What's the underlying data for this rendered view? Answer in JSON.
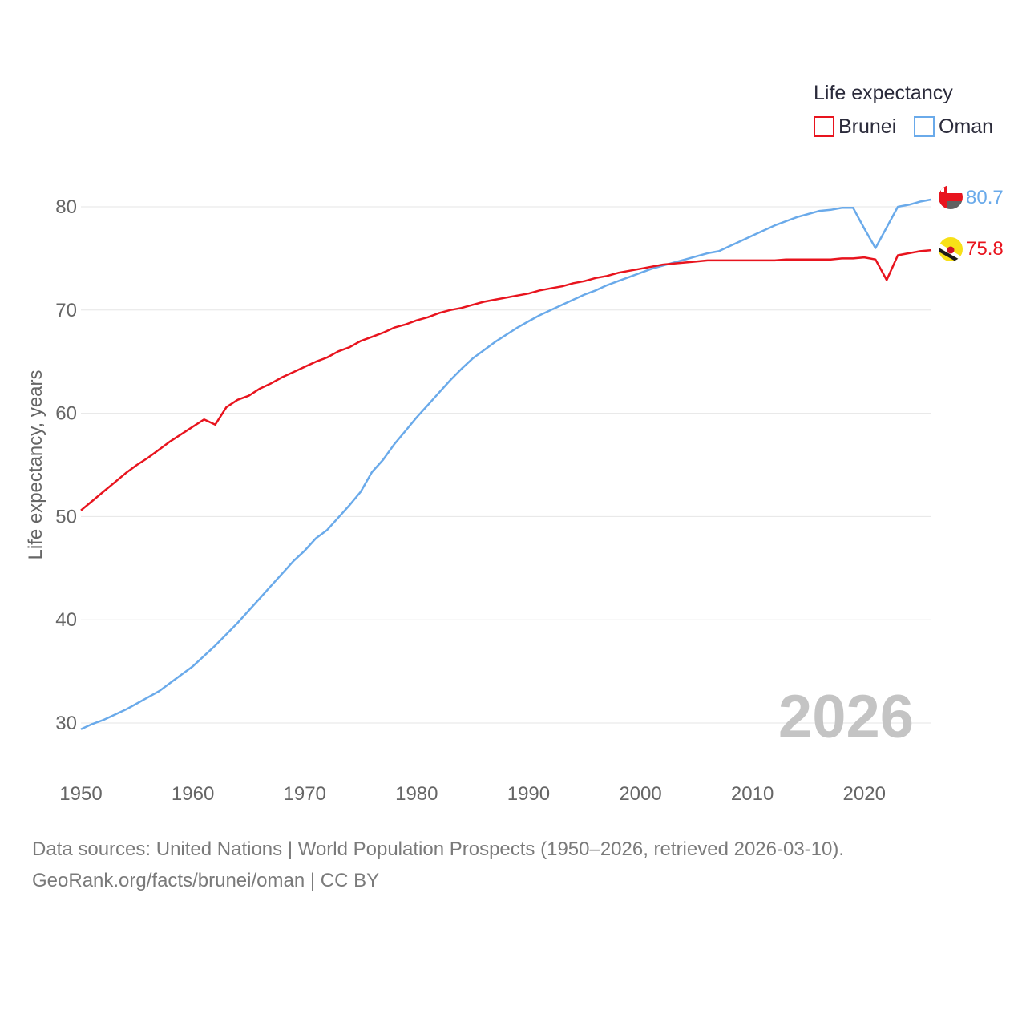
{
  "chart_data": {
    "type": "line",
    "title": "",
    "xlabel": "",
    "ylabel": "Life expectancy, years",
    "xlim": [
      1950,
      2026
    ],
    "ylim": [
      25.5,
      84.5
    ],
    "x_ticks": [
      1950,
      1960,
      1970,
      1980,
      1990,
      2000,
      2010,
      2020
    ],
    "y_ticks": [
      30,
      40,
      50,
      60,
      70,
      80
    ],
    "grid": true,
    "legend": {
      "title": "Life expectancy",
      "position": "top-right"
    },
    "current_year_label": "2026",
    "years": [
      1950,
      1951,
      1952,
      1953,
      1954,
      1955,
      1956,
      1957,
      1958,
      1959,
      1960,
      1961,
      1962,
      1963,
      1964,
      1965,
      1966,
      1967,
      1968,
      1969,
      1970,
      1971,
      1972,
      1973,
      1974,
      1975,
      1976,
      1977,
      1978,
      1979,
      1980,
      1981,
      1982,
      1983,
      1984,
      1985,
      1986,
      1987,
      1988,
      1989,
      1990,
      1991,
      1992,
      1993,
      1994,
      1995,
      1996,
      1997,
      1998,
      1999,
      2000,
      2001,
      2002,
      2003,
      2004,
      2005,
      2006,
      2007,
      2008,
      2009,
      2010,
      2011,
      2012,
      2013,
      2014,
      2015,
      2016,
      2017,
      2018,
      2019,
      2020,
      2021,
      2022,
      2023,
      2024,
      2025,
      2026
    ],
    "series": [
      {
        "name": "Brunei",
        "color": "#e8141e",
        "end_label": "75.8",
        "values": [
          50.6,
          51.5,
          52.4,
          53.3,
          54.2,
          55.0,
          55.7,
          56.5,
          57.3,
          58.0,
          58.7,
          59.4,
          58.9,
          60.6,
          61.3,
          61.7,
          62.4,
          62.9,
          63.5,
          64.0,
          64.5,
          65.0,
          65.4,
          66.0,
          66.4,
          67.0,
          67.4,
          67.8,
          68.3,
          68.6,
          69.0,
          69.3,
          69.7,
          70.0,
          70.2,
          70.5,
          70.8,
          71.0,
          71.2,
          71.4,
          71.6,
          71.9,
          72.1,
          72.3,
          72.6,
          72.8,
          73.1,
          73.3,
          73.6,
          73.8,
          74.0,
          74.2,
          74.4,
          74.5,
          74.6,
          74.7,
          74.8,
          74.8,
          74.8,
          74.8,
          74.8,
          74.8,
          74.8,
          74.9,
          74.9,
          74.9,
          74.9,
          74.9,
          75.0,
          75.0,
          75.1,
          74.9,
          72.9,
          75.3,
          75.5,
          75.7,
          75.8
        ]
      },
      {
        "name": "Oman",
        "color": "#6aaaea",
        "end_label": "80.7",
        "values": [
          29.4,
          29.9,
          30.3,
          30.8,
          31.3,
          31.9,
          32.5,
          33.1,
          33.9,
          34.7,
          35.5,
          36.5,
          37.5,
          38.6,
          39.7,
          40.9,
          42.1,
          43.3,
          44.5,
          45.7,
          46.7,
          47.9,
          48.7,
          49.9,
          51.1,
          52.4,
          54.3,
          55.5,
          57.0,
          58.3,
          59.6,
          60.8,
          62.0,
          63.2,
          64.3,
          65.3,
          66.1,
          66.9,
          67.6,
          68.3,
          68.9,
          69.5,
          70.0,
          70.5,
          71.0,
          71.5,
          71.9,
          72.4,
          72.8,
          73.2,
          73.6,
          74.0,
          74.3,
          74.6,
          74.9,
          75.2,
          75.5,
          75.7,
          76.2,
          76.7,
          77.2,
          77.7,
          78.2,
          78.6,
          79.0,
          79.3,
          79.6,
          79.7,
          79.9,
          79.9,
          77.9,
          76.0,
          78.0,
          80.0,
          80.2,
          80.5,
          80.7
        ]
      }
    ]
  },
  "source_lines": [
    "Data sources: United Nations | World Population Prospects (1950–2026, retrieved 2026-03-10).",
    "GeoRank.org/facts/brunei/oman | CC BY"
  ],
  "flags": [
    {
      "country": "Oman",
      "icon": "oman-flag-icon"
    },
    {
      "country": "Brunei",
      "icon": "brunei-flag-icon"
    }
  ]
}
